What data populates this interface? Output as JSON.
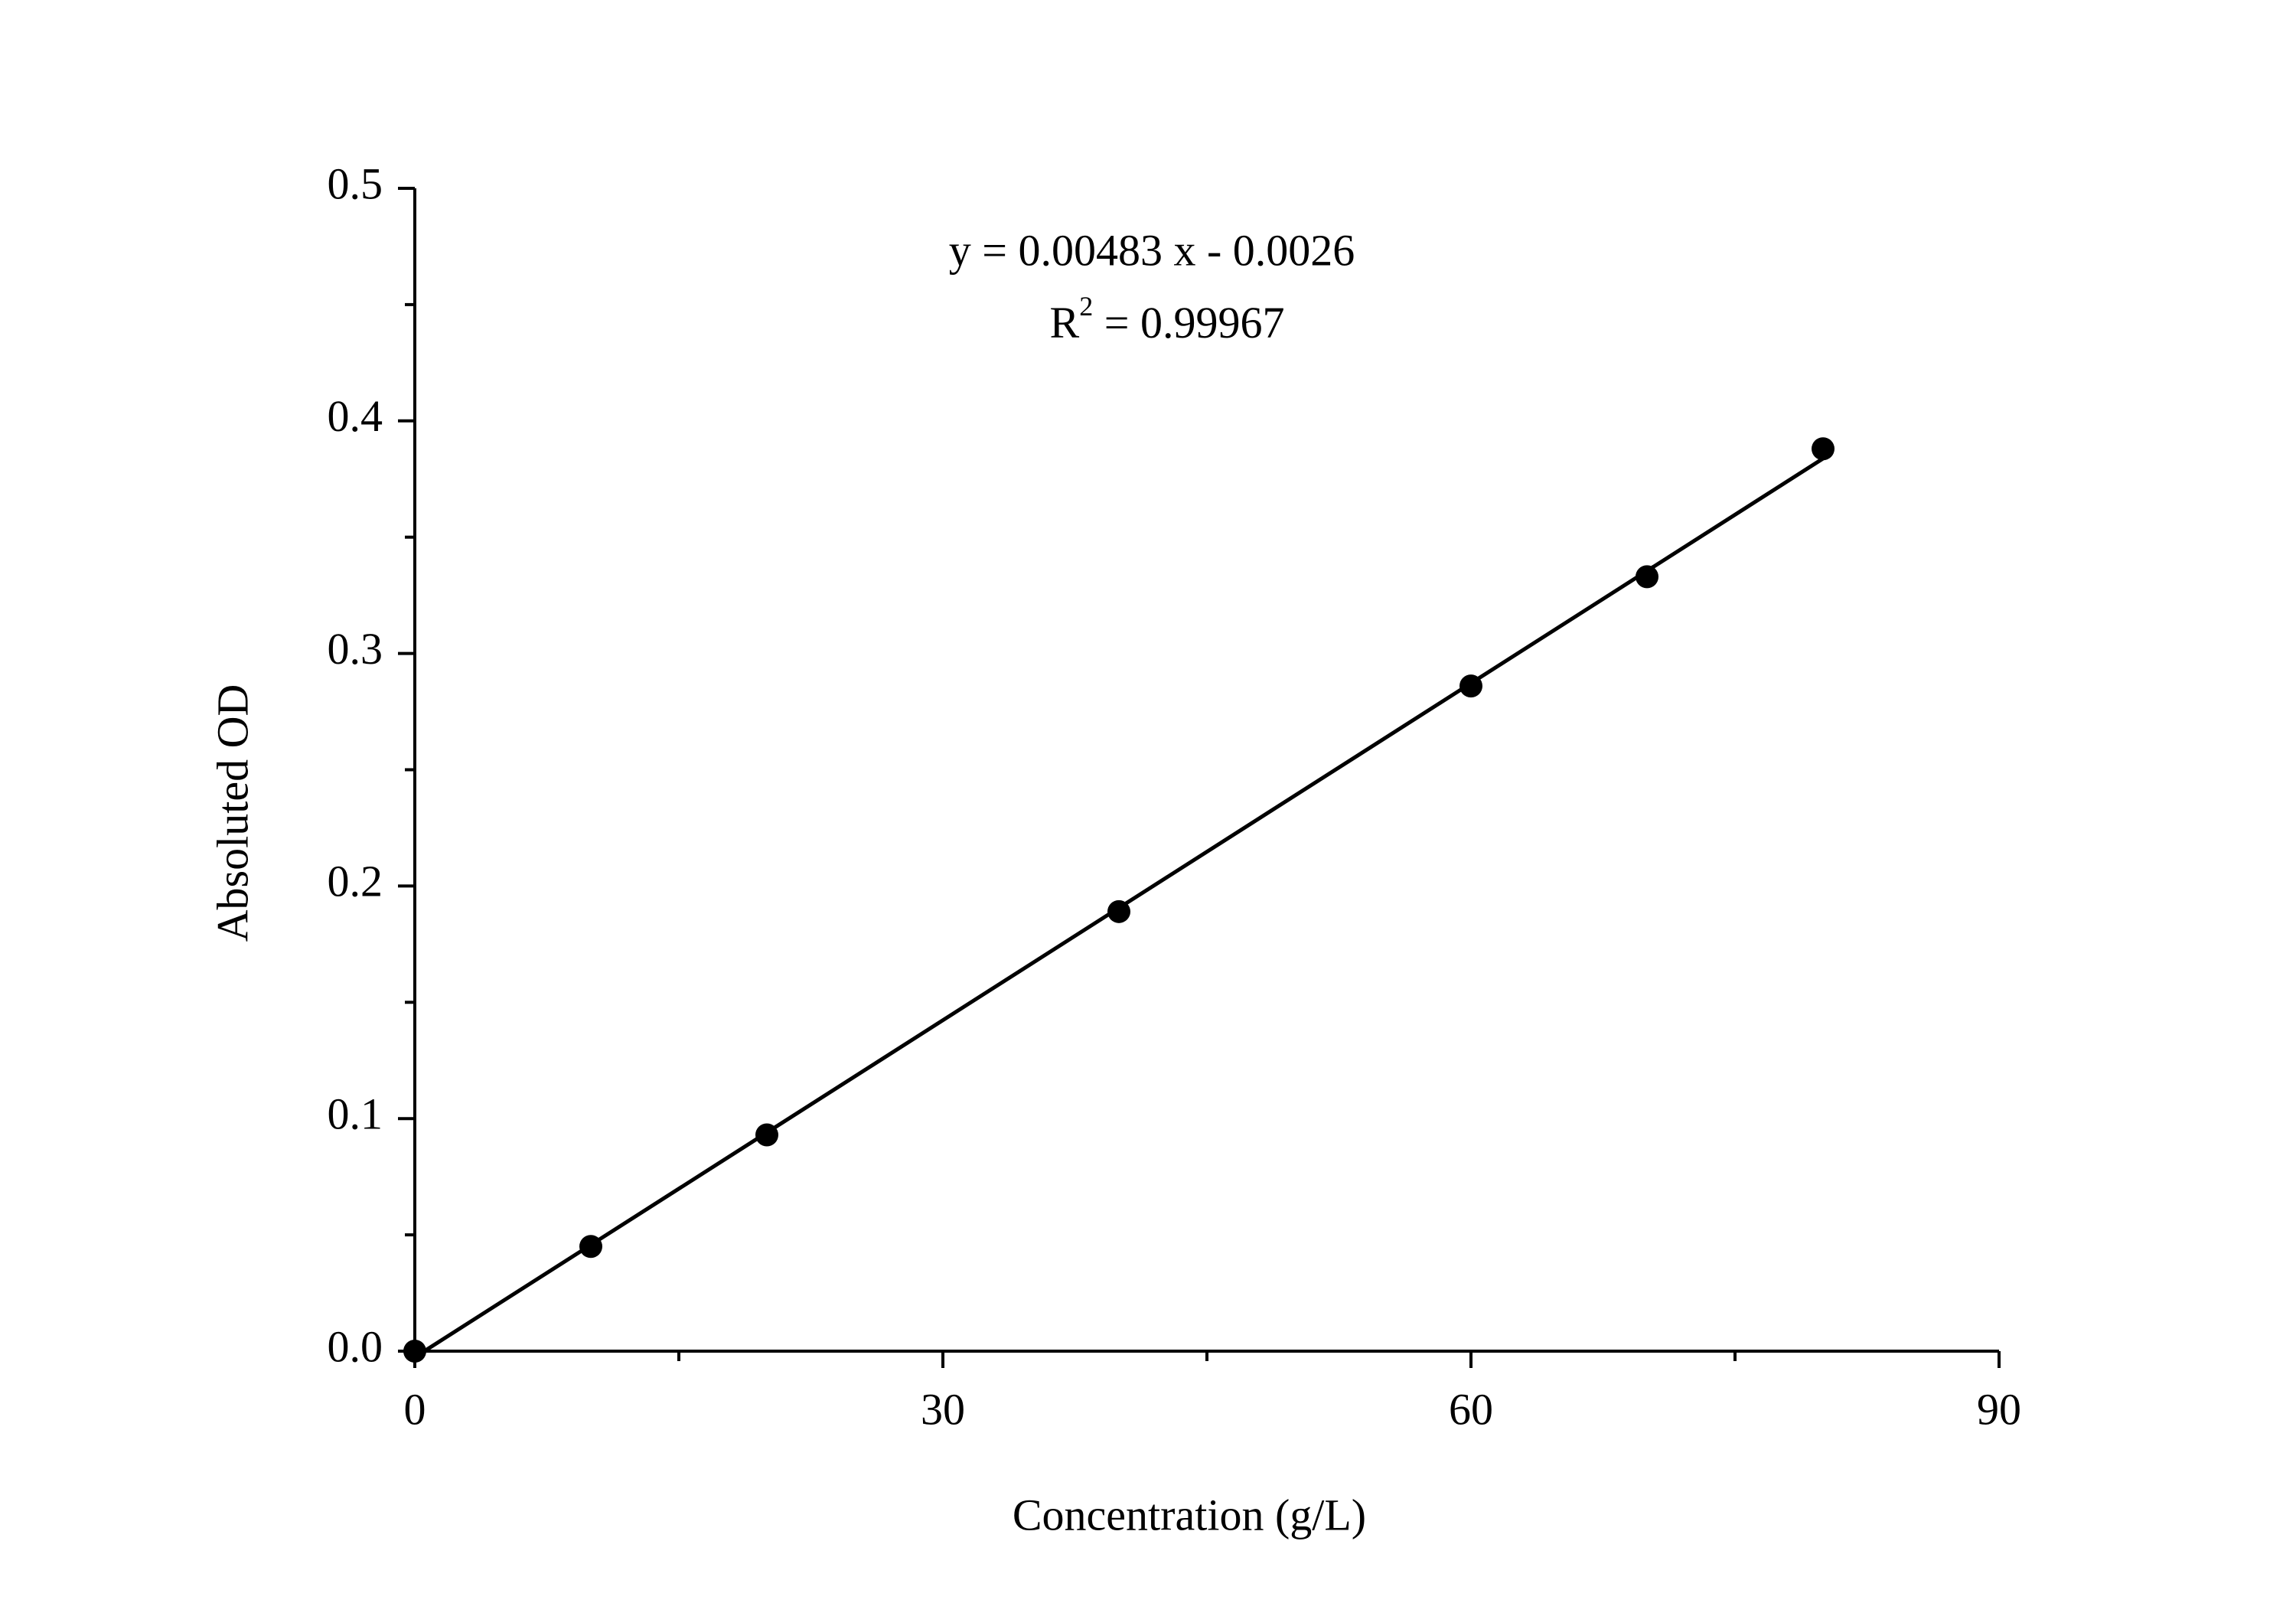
{
  "chart_data": {
    "type": "scatter",
    "x_label": "Concentration (g/L)",
    "y_label": "Absoluted OD",
    "equation": "y = 0.00483 x - 0.0026",
    "r_squared": {
      "symbol": "R",
      "exponent": "2",
      "text": " = 0.99967"
    },
    "x": [
      0,
      10,
      20,
      40,
      60,
      70,
      80
    ],
    "series": [
      {
        "color": "#000000",
        "values": [
          0,
          0.045,
          0.093,
          0.189,
          0.286,
          0.333,
          0.388
        ]
      }
    ],
    "fit_line": {
      "color": "#000000",
      "x": [
        0.54,
        80
      ],
      "values": [
        0,
        0.3838
      ]
    },
    "xlim": [
      0,
      90
    ],
    "xticks": [
      0,
      30,
      60,
      90
    ],
    "xminorticks": [
      15,
      45,
      75
    ],
    "ylim": [
      0,
      0.5
    ],
    "yticks": [
      {
        "value": 0,
        "label": "0.0"
      },
      0.1,
      0.2,
      0.3,
      0.4,
      0.5
    ],
    "yminorticks": [
      0.05,
      0.15,
      0.25,
      0.35,
      0.45
    ],
    "grid": false
  }
}
